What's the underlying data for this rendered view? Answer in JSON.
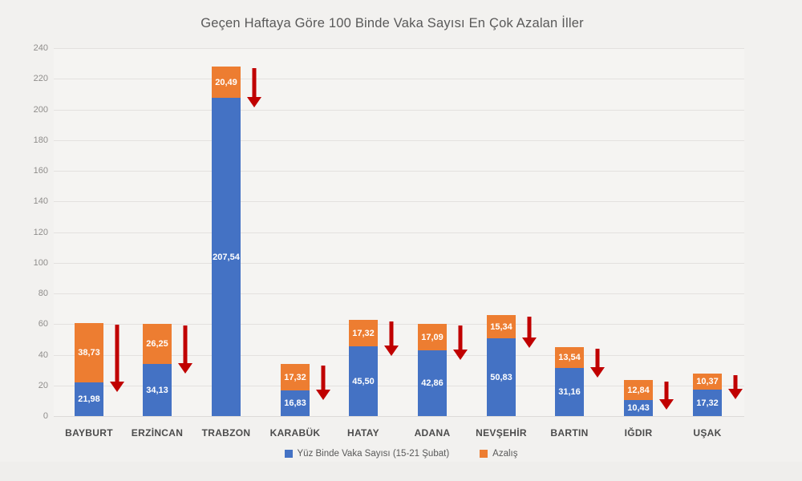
{
  "title": "Geçen Haftaya Göre 100 Binde Vaka Sayısı En Çok Azalan İller",
  "chart_data": {
    "type": "bar",
    "stacked": true,
    "orientation": "vertical",
    "title": "Geçen Haftaya Göre 100 Binde Vaka Sayısı En Çok Azalan İller",
    "categories": [
      "BAYBURT",
      "ERZİNCAN",
      "TRABZON",
      "KARABÜK",
      "HATAY",
      "ADANA",
      "NEVŞEHİR",
      "BARTIN",
      "IĞDIR",
      "UŞAK"
    ],
    "series": [
      {
        "name": "Yüz Binde Vaka Sayısı (15-21 Şubat)",
        "color": "#4472C4",
        "values": [
          21.98,
          34.13,
          207.54,
          16.83,
          45.5,
          42.86,
          50.83,
          31.16,
          10.43,
          17.32
        ],
        "labels": [
          "21,98",
          "34,13",
          "207,54",
          "16,83",
          "45,50",
          "42,86",
          "50,83",
          "31,16",
          "10,43",
          "17,32"
        ]
      },
      {
        "name": "Azalış",
        "color": "#ED7D31",
        "values": [
          38.73,
          26.25,
          20.49,
          17.32,
          17.32,
          17.09,
          15.34,
          13.54,
          12.84,
          10.37
        ],
        "labels": [
          "38,73",
          "26,25",
          "20,49",
          "17,32",
          "17,32",
          "17,09",
          "15,34",
          "13,54",
          "12,84",
          "10,37"
        ]
      }
    ],
    "y_axis": {
      "min": 0,
      "max": 240,
      "step": 20,
      "ticks": [
        "0",
        "20",
        "40",
        "60",
        "80",
        "100",
        "120",
        "140",
        "160",
        "180",
        "200",
        "220",
        "240"
      ]
    },
    "grid": true,
    "legend_position": "bottom",
    "annotations": {
      "shape": "down-arrow",
      "color": "#C00000",
      "description": "red decrease arrow beside each bar"
    }
  },
  "legend": {
    "items": [
      {
        "label": "Yüz Binde Vaka Sayısı (15-21 Şubat)",
        "color": "#4472C4"
      },
      {
        "label": "Azalış",
        "color": "#ED7D31"
      }
    ]
  }
}
